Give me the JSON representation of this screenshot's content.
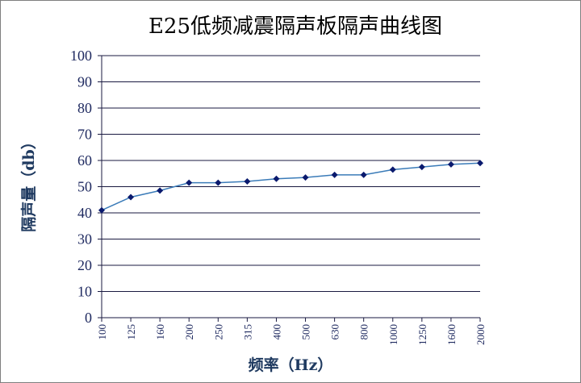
{
  "chart_data": {
    "type": "line",
    "title": "E25低频减震隔声板隔声曲线图",
    "xlabel": "频率（Hz）",
    "ylabel": "隔声量（db）",
    "categories": [
      "100",
      "125",
      "160",
      "200",
      "250",
      "315",
      "400",
      "500",
      "630",
      "800",
      "1000",
      "1250",
      "1600",
      "2000"
    ],
    "series": [
      {
        "values": [
          41,
          46,
          48.5,
          51.5,
          51.5,
          52,
          53,
          53.5,
          54.5,
          54.5,
          56.5,
          57.5,
          58.5,
          59
        ]
      }
    ],
    "ylim": [
      0,
      100
    ],
    "yticks": [
      "0",
      "10",
      "20",
      "30",
      "40",
      "50",
      "60",
      "70",
      "80",
      "90",
      "100"
    ],
    "grid": true,
    "legend": "none",
    "colors": {
      "line": "#3a7bb8",
      "marker": "#0a1a6e",
      "grid": "#1a1a40",
      "tick_text": "#1f2a60"
    }
  }
}
